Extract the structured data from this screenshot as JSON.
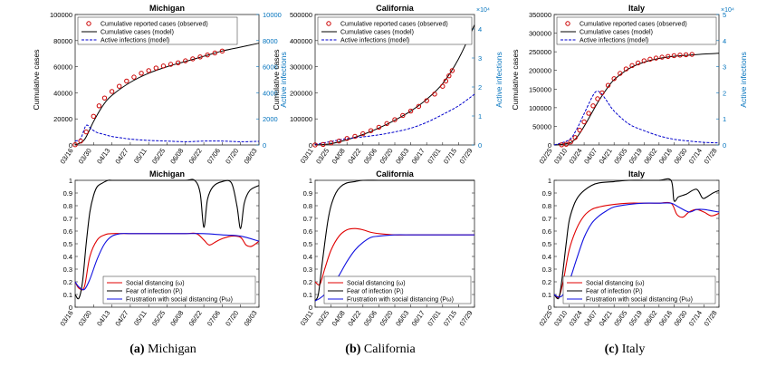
{
  "captions": [
    {
      "letter": "(a)",
      "text": "Michigan"
    },
    {
      "letter": "(b)",
      "text": "California"
    },
    {
      "letter": "(c)",
      "text": "Italy"
    }
  ],
  "colors": {
    "observed": "#cc0000",
    "model": "#000000",
    "active": "#0000cc",
    "right_axis": "#0072bd",
    "social": "#e00000",
    "fear": "#000000",
    "frustration": "#1010e0"
  },
  "chart_data": [
    {
      "type": "line",
      "region": "Michigan",
      "title": "Michigan",
      "ylabel": "Cumulative cases",
      "ylabel_right": "Active infections",
      "ylim": [
        0,
        100000
      ],
      "ylim_right": [
        0,
        10000
      ],
      "yticks": [
        "0",
        "20000",
        "40000",
        "60000",
        "80000",
        "100000"
      ],
      "yticks_right": [
        "0",
        "2000",
        "4000",
        "6000",
        "8000",
        "10000"
      ],
      "right_exponent": "",
      "xticks": [
        "03/16",
        "03/30",
        "04/13",
        "04/27",
        "05/11",
        "05/25",
        "06/08",
        "06/22",
        "07/06",
        "07/20",
        "08/03"
      ],
      "legend": [
        "Cumulative reported cases (observed)",
        "Cumulative cases (model)",
        "Active infections (model)"
      ],
      "series": [
        {
          "name": "Cumulative reported cases (observed)",
          "axis": "left",
          "x": [
            0,
            0.3,
            0.6,
            1,
            1.3,
            1.6,
            2,
            2.4,
            2.8,
            3.2,
            3.6,
            4,
            4.4,
            4.8,
            5.2,
            5.6,
            6,
            6.4,
            6.8,
            7.2,
            7.6,
            8
          ],
          "y": [
            200,
            3000,
            10000,
            22000,
            30000,
            36000,
            41000,
            45000,
            49000,
            52000,
            55000,
            57000,
            59000,
            60500,
            61800,
            63000,
            64500,
            66000,
            67500,
            69000,
            70500,
            72000
          ]
        },
        {
          "name": "Cumulative cases (model)",
          "axis": "left",
          "x": [
            0,
            0.5,
            1,
            1.5,
            2,
            3,
            4,
            5,
            6,
            7,
            8,
            9,
            10
          ],
          "y": [
            0,
            4000,
            18000,
            30000,
            38000,
            48000,
            55000,
            60000,
            64000,
            68000,
            72000,
            75000,
            78000
          ]
        },
        {
          "name": "Active infections (model)",
          "axis": "right",
          "x": [
            0,
            0.3,
            0.6,
            0.9,
            1.2,
            1.6,
            2,
            2.5,
            3,
            4,
            5,
            6,
            7,
            8,
            9,
            10
          ],
          "y": [
            300,
            500,
            1500,
            1200,
            950,
            800,
            650,
            550,
            450,
            350,
            300,
            250,
            300,
            300,
            250,
            280
          ]
        }
      ]
    },
    {
      "type": "line",
      "region": "California",
      "title": "California",
      "ylabel": "Cumulative cases",
      "ylabel_right": "Active infections",
      "ylim": [
        0,
        500000
      ],
      "ylim_right": [
        0,
        4.5
      ],
      "yticks": [
        "0",
        "100000",
        "200000",
        "300000",
        "400000",
        "500000"
      ],
      "yticks_right": [
        "0",
        "1",
        "2",
        "3",
        "4"
      ],
      "right_exponent": "×10⁴",
      "xticks": [
        "03/11",
        "03/25",
        "04/08",
        "04/22",
        "05/06",
        "05/20",
        "06/03",
        "06/17",
        "07/01",
        "07/15",
        "07/29"
      ],
      "legend": [
        "Cumulative reported cases (observed)",
        "Cumulative cases (model)",
        "Active infections (model)"
      ],
      "series": [
        {
          "name": "Cumulative reported cases (observed)",
          "axis": "left",
          "x": [
            0,
            0.5,
            1,
            1.5,
            2,
            2.5,
            3,
            3.5,
            4,
            4.5,
            5,
            5.5,
            6,
            6.5,
            7,
            7.5,
            8,
            8.2,
            8.4,
            8.6
          ],
          "y": [
            200,
            2000,
            8000,
            15000,
            25000,
            33000,
            43000,
            55000,
            68000,
            82000,
            97000,
            113000,
            130000,
            148000,
            170000,
            195000,
            225000,
            245000,
            265000,
            285000
          ]
        },
        {
          "name": "Cumulative cases (model)",
          "axis": "left",
          "x": [
            0,
            1,
            2,
            3,
            4,
            5,
            6,
            7,
            8,
            9,
            10
          ],
          "y": [
            0,
            5000,
            20000,
            40000,
            65000,
            95000,
            130000,
            175000,
            235000,
            330000,
            460000
          ]
        },
        {
          "name": "Active infections (model)",
          "axis": "right",
          "x": [
            0,
            1,
            2,
            3,
            4,
            5,
            6,
            7,
            8,
            9,
            10
          ],
          "y": [
            0.02,
            0.12,
            0.22,
            0.28,
            0.35,
            0.45,
            0.58,
            0.78,
            1.05,
            1.35,
            1.75
          ]
        }
      ]
    },
    {
      "type": "line",
      "region": "Italy",
      "title": "Italy",
      "ylabel": "Cumulative cases",
      "ylabel_right": "Active infections",
      "ylim": [
        0,
        350000
      ],
      "ylim_right": [
        0,
        5
      ],
      "yticks": [
        "0",
        "50000",
        "100000",
        "150000",
        "200000",
        "250000",
        "300000",
        "350000"
      ],
      "yticks_right": [
        "0",
        "1",
        "2",
        "3",
        "4",
        "5"
      ],
      "right_exponent": "×10⁴",
      "xticks": [
        "02/25",
        "03/10",
        "03/24",
        "04/07",
        "04/21",
        "05/05",
        "05/19",
        "06/02",
        "06/16",
        "06/30",
        "07/14",
        "07/28"
      ],
      "legend": [
        "Cumulative reported cases (observed)",
        "Cumulative cases (model)",
        "Active infections (model)"
      ],
      "series": [
        {
          "name": "Cumulative reported cases (observed)",
          "axis": "left",
          "x": [
            0.5,
            0.8,
            1.1,
            1.4,
            1.7,
            2,
            2.3,
            2.6,
            2.9,
            3.2,
            3.6,
            4,
            4.4,
            4.8,
            5.2,
            5.6,
            6,
            6.4,
            6.8,
            7.2,
            7.6,
            8,
            8.4,
            8.8,
            9.2
          ],
          "y": [
            500,
            2000,
            8000,
            20000,
            40000,
            62000,
            85000,
            105000,
            124000,
            140000,
            160000,
            178000,
            192000,
            204000,
            213000,
            220000,
            226000,
            230000,
            233000,
            235500,
            237500,
            239500,
            241000,
            242000,
            243000
          ]
        },
        {
          "name": "Cumulative cases (model)",
          "axis": "left",
          "x": [
            0,
            1,
            1.5,
            2,
            2.5,
            3,
            3.5,
            4,
            5,
            6,
            7,
            8,
            9,
            10,
            11
          ],
          "y": [
            0,
            5000,
            20000,
            50000,
            85000,
            120000,
            150000,
            175000,
            205000,
            222000,
            232000,
            238000,
            241000,
            244000,
            246000
          ]
        },
        {
          "name": "Active infections (model)",
          "axis": "right",
          "x": [
            0,
            1,
            1.5,
            2,
            2.5,
            2.8,
            3.1,
            3.5,
            4,
            5,
            6,
            7,
            8,
            9,
            10,
            11
          ],
          "y": [
            0,
            0.2,
            0.6,
            1.2,
            1.8,
            2.05,
            2.0,
            1.7,
            1.3,
            0.8,
            0.55,
            0.35,
            0.22,
            0.15,
            0.1,
            0.08
          ]
        }
      ]
    },
    {
      "type": "line",
      "region": "Michigan",
      "title": "Michigan",
      "ylim": [
        0,
        1
      ],
      "yticks": [
        "0",
        "0.1",
        "0.2",
        "0.3",
        "0.4",
        "0.5",
        "0.6",
        "0.7",
        "0.8",
        "0.9",
        "1"
      ],
      "xticks": [
        "03/16",
        "03/30",
        "04/13",
        "04/27",
        "05/11",
        "05/25",
        "06/08",
        "06/22",
        "07/06",
        "07/20",
        "08/03"
      ],
      "legend": [
        "Social distancing (ω)",
        "Fear of infection (Pᵢ)",
        "Frustration with social distancing (Pω)"
      ],
      "series": [
        {
          "name": "Social distancing (ω)",
          "x": [
            0,
            0.2,
            0.5,
            0.8,
            1.2,
            1.6,
            2,
            3,
            4,
            5,
            6,
            6.6,
            7,
            7.3,
            7.7,
            8,
            8.5,
            9,
            9.3,
            9.6,
            10
          ],
          "y": [
            0.2,
            0.15,
            0.16,
            0.4,
            0.53,
            0.57,
            0.58,
            0.58,
            0.58,
            0.58,
            0.58,
            0.58,
            0.53,
            0.49,
            0.52,
            0.54,
            0.56,
            0.55,
            0.49,
            0.48,
            0.52
          ]
        },
        {
          "name": "Fear of infection (Pᵢ)",
          "x": [
            0,
            0.2,
            0.4,
            0.6,
            0.8,
            1,
            1.2,
            1.5,
            1.8,
            2,
            3,
            4,
            5,
            6,
            6.5,
            6.8,
            7,
            7.2,
            7.5,
            8,
            8.5,
            8.8,
            9,
            9.2,
            9.5,
            10
          ],
          "y": [
            0.1,
            0.07,
            0.2,
            0.5,
            0.75,
            0.88,
            0.95,
            0.98,
            1,
            1,
            1,
            1,
            1,
            1,
            1,
            0.9,
            0.63,
            0.85,
            0.95,
            0.99,
            0.98,
            0.8,
            0.62,
            0.82,
            0.92,
            0.96
          ]
        },
        {
          "name": "Frustration with social distancing (Pω)",
          "x": [
            0,
            0.2,
            0.5,
            0.8,
            1.2,
            1.6,
            2,
            2.5,
            3,
            4,
            5,
            6,
            7,
            8,
            9,
            10
          ],
          "y": [
            0.2,
            0.16,
            0.14,
            0.22,
            0.38,
            0.5,
            0.56,
            0.58,
            0.58,
            0.58,
            0.58,
            0.58,
            0.58,
            0.57,
            0.56,
            0.52
          ]
        }
      ]
    },
    {
      "type": "line",
      "region": "California",
      "title": "California",
      "ylim": [
        0,
        1
      ],
      "yticks": [
        "0",
        "0.1",
        "0.2",
        "0.3",
        "0.4",
        "0.5",
        "0.6",
        "0.7",
        "0.8",
        "0.9",
        "1"
      ],
      "xticks": [
        "03/11",
        "03/25",
        "04/08",
        "04/22",
        "05/06",
        "05/20",
        "06/03",
        "06/17",
        "07/01",
        "07/15",
        "07/29"
      ],
      "legend": [
        "Social distancing (ω)",
        "Fear of infection (Pᵢ)",
        "Frustration with social distancing (Pω)"
      ],
      "series": [
        {
          "name": "Social distancing (ω)",
          "x": [
            0,
            0.3,
            0.6,
            1,
            1.5,
            2,
            2.5,
            3,
            3.5,
            4,
            5,
            6,
            7,
            8,
            9,
            10
          ],
          "y": [
            0.2,
            0.18,
            0.3,
            0.45,
            0.56,
            0.61,
            0.62,
            0.61,
            0.59,
            0.58,
            0.57,
            0.57,
            0.57,
            0.57,
            0.57,
            0.57
          ]
        },
        {
          "name": "Fear of infection (Pᵢ)",
          "x": [
            0,
            0.2,
            0.4,
            0.6,
            0.8,
            1,
            1.3,
            1.6,
            2,
            2.5,
            3,
            4,
            5,
            6,
            7,
            8,
            9,
            10
          ],
          "y": [
            0.05,
            0.1,
            0.3,
            0.5,
            0.68,
            0.8,
            0.9,
            0.95,
            0.98,
            0.99,
            1,
            1,
            1,
            1,
            1,
            1,
            1,
            1
          ]
        },
        {
          "name": "Frustration with social distancing (Pω)",
          "x": [
            0,
            0.3,
            0.6,
            1,
            1.5,
            2,
            2.5,
            3,
            3.5,
            4,
            5,
            6,
            7,
            8,
            9,
            10
          ],
          "y": [
            0.05,
            0.07,
            0.1,
            0.15,
            0.25,
            0.36,
            0.45,
            0.51,
            0.55,
            0.56,
            0.57,
            0.57,
            0.57,
            0.57,
            0.57,
            0.57
          ]
        }
      ]
    },
    {
      "type": "line",
      "region": "Italy",
      "title": "Italy",
      "ylim": [
        0,
        1
      ],
      "yticks": [
        "0",
        "0.1",
        "0.2",
        "0.3",
        "0.4",
        "0.5",
        "0.6",
        "0.7",
        "0.8",
        "0.9",
        "1"
      ],
      "xticks": [
        "02/25",
        "03/10",
        "03/24",
        "04/07",
        "04/21",
        "05/05",
        "05/19",
        "06/02",
        "06/16",
        "06/30",
        "07/14",
        "07/28"
      ],
      "legend": [
        "Social distancing (ω)",
        "Fear of infection (Pᵢ)",
        "Frustration with social distancing (Pω)"
      ],
      "series": [
        {
          "name": "Social distancing (ω)",
          "x": [
            0,
            0.3,
            0.6,
            1,
            1.5,
            2,
            2.5,
            3,
            4,
            5,
            6,
            7,
            7.8,
            8.2,
            8.6,
            9,
            9.5,
            10,
            10.5,
            11
          ],
          "y": [
            0.1,
            0.08,
            0.2,
            0.45,
            0.62,
            0.72,
            0.77,
            0.79,
            0.81,
            0.82,
            0.82,
            0.82,
            0.82,
            0.73,
            0.71,
            0.75,
            0.77,
            0.75,
            0.72,
            0.74
          ]
        },
        {
          "name": "Fear of infection (Pᵢ)",
          "x": [
            0,
            0.3,
            0.5,
            0.8,
            1,
            1.3,
            1.6,
            2,
            2.5,
            3,
            4,
            5,
            6,
            7,
            7.8,
            8,
            8.3,
            8.8,
            9.5,
            9.9,
            10.2,
            10.6,
            11
          ],
          "y": [
            0.1,
            0.07,
            0.2,
            0.5,
            0.68,
            0.8,
            0.87,
            0.92,
            0.96,
            0.98,
            0.99,
            1,
            1,
            1,
            1,
            0.84,
            0.87,
            0.89,
            0.93,
            0.86,
            0.87,
            0.9,
            0.92
          ]
        },
        {
          "name": "Frustration with social distancing (Pω)",
          "x": [
            0,
            0.3,
            0.6,
            1,
            1.5,
            2,
            2.5,
            3,
            3.5,
            4,
            5,
            6,
            7,
            7.8,
            8.3,
            9,
            9.5,
            10,
            10.5,
            11
          ],
          "y": [
            0.1,
            0.08,
            0.1,
            0.2,
            0.38,
            0.55,
            0.66,
            0.72,
            0.76,
            0.79,
            0.81,
            0.82,
            0.82,
            0.82,
            0.79,
            0.75,
            0.77,
            0.77,
            0.76,
            0.75
          ]
        }
      ]
    }
  ]
}
